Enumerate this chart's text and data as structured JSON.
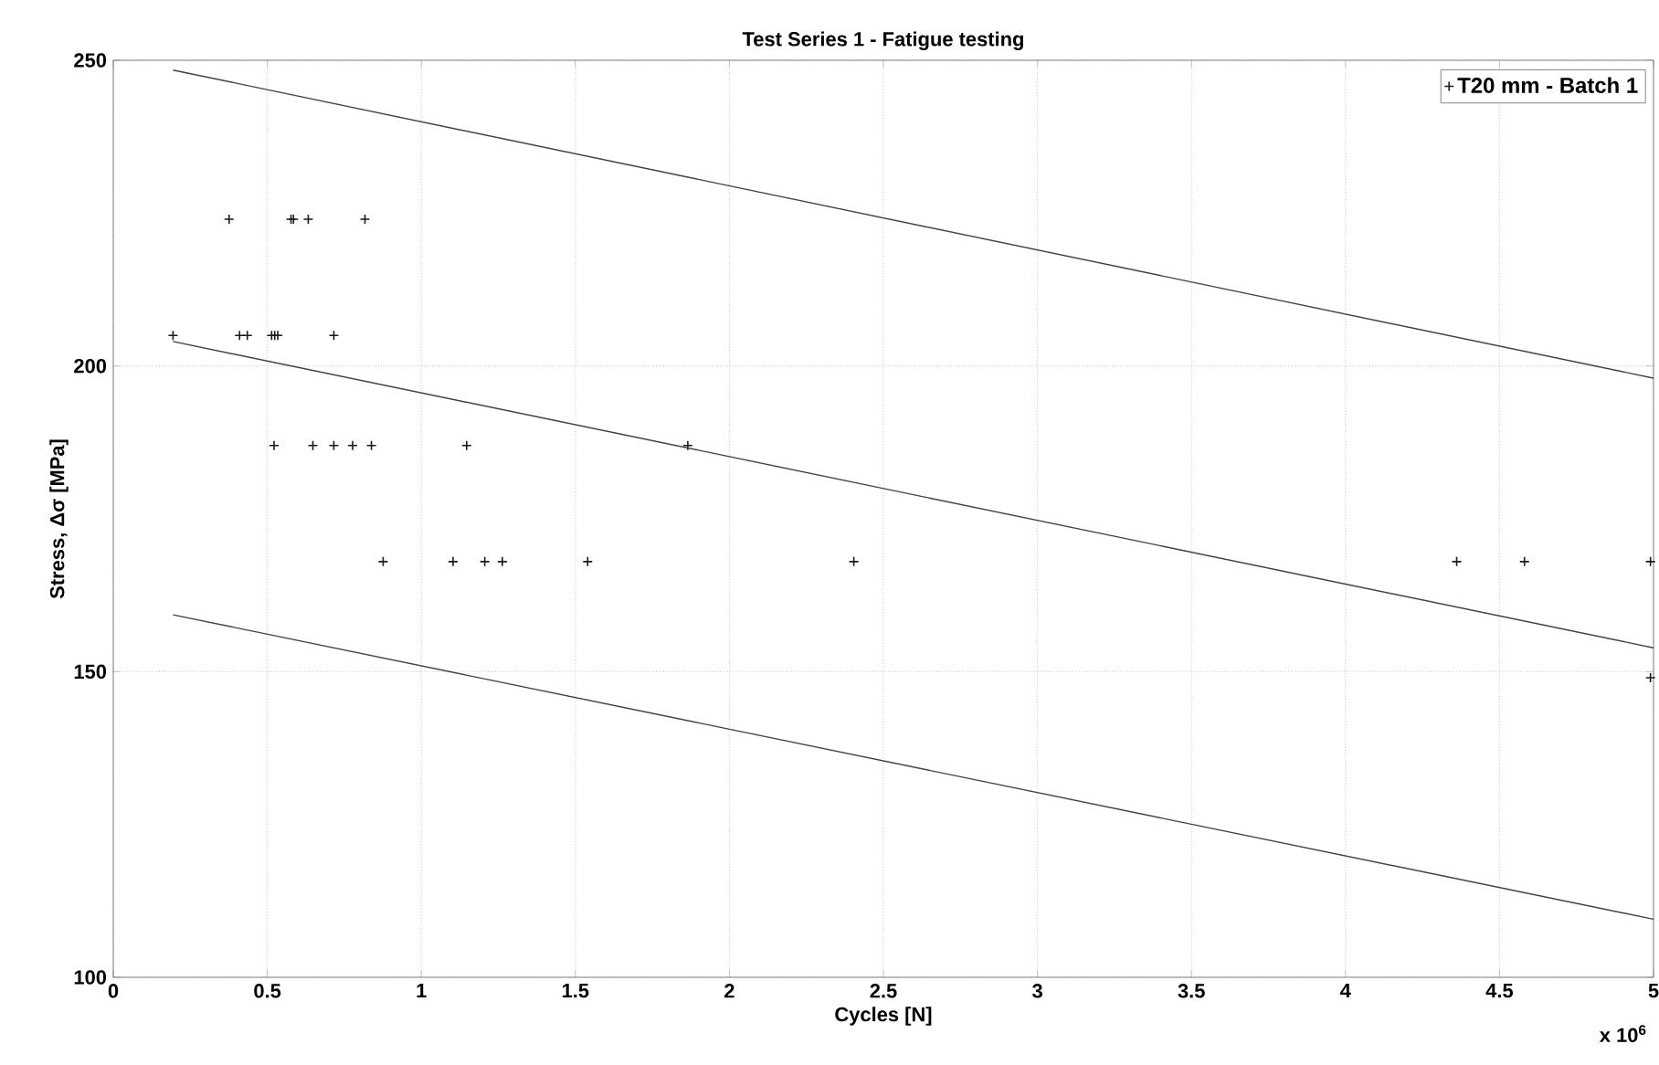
{
  "chart_data": {
    "type": "scatter",
    "title": "Test Series 1 - Fatigue testing",
    "xlabel": "Cycles [N]",
    "ylabel": "Stress, Δσ [MPa]",
    "xlim": [
      0,
      5
    ],
    "xticks": [
      0,
      0.5,
      1,
      1.5,
      2,
      2.5,
      3,
      3.5,
      4,
      4.5,
      5
    ],
    "ylim": [
      100,
      250
    ],
    "yticks": [
      100,
      150,
      200,
      250
    ],
    "grid": true,
    "legend": "top right",
    "annotations": [
      "x 10$^{6}$"
    ],
    "series": [
      {
        "name": "T20 mm - Batch 1",
        "color": "#1a1a1a",
        "marker": "cross",
        "x": [
          0.376,
          0.577,
          0.585,
          0.633,
          0.817,
          0.194,
          0.41,
          0.435,
          0.514,
          0.524,
          0.534,
          0.716,
          0.522,
          0.648,
          0.716,
          0.777,
          0.838,
          1.147,
          1.865,
          0.876,
          1.103,
          1.206,
          1.263,
          1.54,
          2.404,
          4.361,
          4.581,
          4.99,
          4.99
        ],
        "values": [
          224,
          224,
          224,
          224,
          224,
          205,
          205,
          205,
          205,
          205,
          205,
          205,
          187,
          187,
          187,
          187,
          187,
          187,
          187,
          168,
          168,
          168,
          168,
          168,
          168,
          168,
          168,
          168,
          149
        ]
      },
      {
        "type": "line",
        "color": "#404040",
        "x": [
          0.194,
          5
        ],
        "values": [
          248.4,
          198
        ]
      },
      {
        "type": "line",
        "color": "#404040",
        "x": [
          0.194,
          5
        ],
        "values": [
          204,
          153.9
        ]
      },
      {
        "type": "line",
        "color": "#404040",
        "x": [
          0.194,
          5
        ],
        "values": [
          159.3,
          109.5
        ]
      }
    ]
  }
}
